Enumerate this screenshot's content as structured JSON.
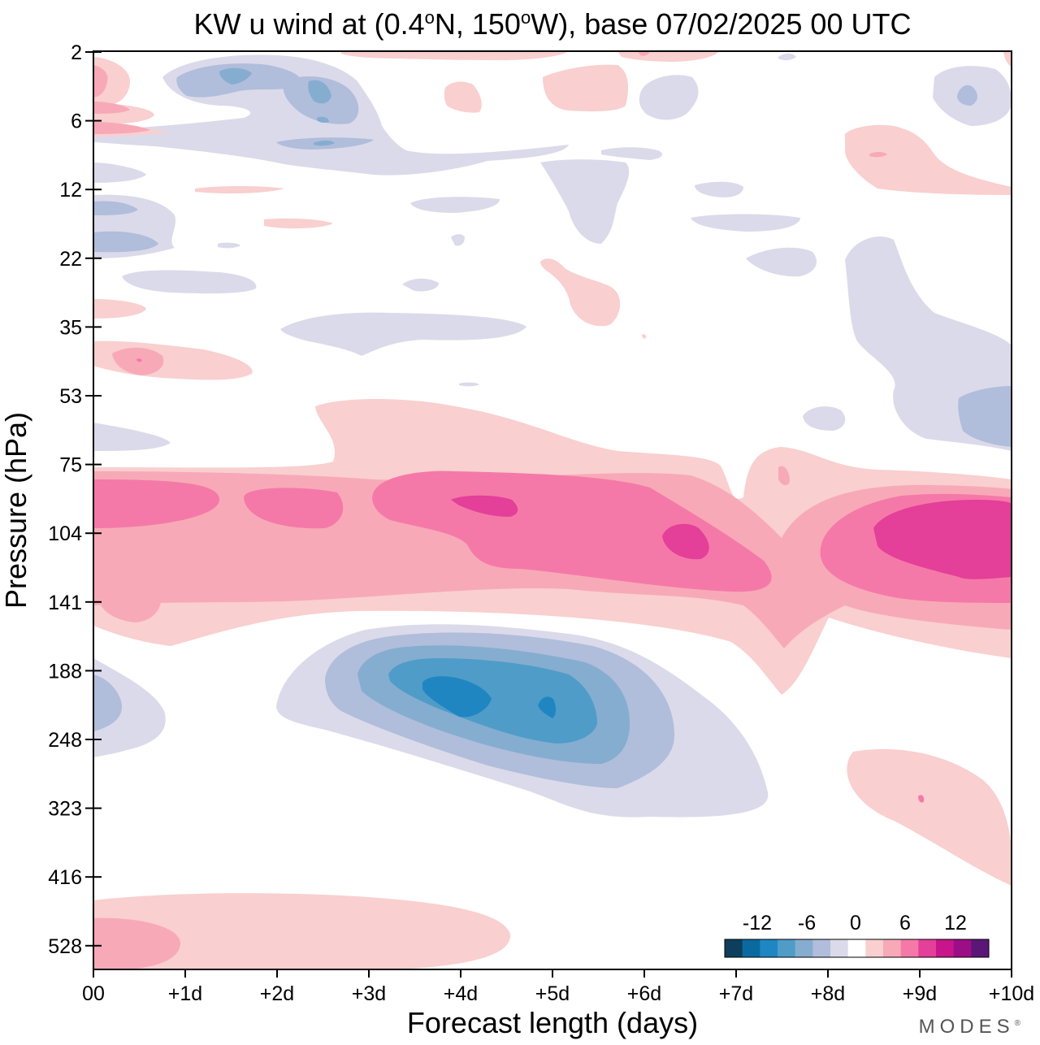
{
  "header": {
    "title_prefix": "KW u wind at (0.4",
    "deg1": "o",
    "title_mid": "N, 150",
    "deg2": "o",
    "title_suffix": "W),  base 07/02/2025  00 UTC"
  },
  "brand": {
    "name": "MODES",
    "mark": "®"
  },
  "chart_data": {
    "type": "heatmap",
    "title": "KW u wind at (0.4°N, 150°W),  base 07/02/2025  00 UTC",
    "xlabel": "Forecast length (days)",
    "ylabel": "Pressure (hPa)",
    "x_ticks": [
      "00",
      "+1d",
      "+2d",
      "+3d",
      "+4d",
      "+5d",
      "+6d",
      "+7d",
      "+8d",
      "+9d",
      "+10d"
    ],
    "x_range_days": [
      0,
      10
    ],
    "y_ticks_hPa": [
      "2",
      "6",
      "12",
      "22",
      "35",
      "53",
      "75",
      "104",
      "141",
      "188",
      "248",
      "323",
      "416",
      "528"
    ],
    "y_range_hPa": [
      2,
      600
    ],
    "colorbar": {
      "tick_labels": [
        "-12",
        "-6",
        "0",
        "6",
        "12"
      ],
      "levels": [
        -16,
        -14,
        -12,
        -10,
        -8,
        -6,
        -4,
        -2,
        2,
        4,
        6,
        8,
        10,
        12,
        14,
        16
      ],
      "colors": [
        "#0d3f5c",
        "#0a6aa0",
        "#1f86c2",
        "#4f9cc9",
        "#85adcf",
        "#b0bddb",
        "#dbdaea",
        "#ffffff",
        "#f9cfcf",
        "#f8a9b7",
        "#f479a8",
        "#e43f99",
        "#c9158b",
        "#9c0e85",
        "#5a1778"
      ]
    },
    "features": [
      {
        "name": "negative core",
        "x_days": 4.0,
        "p_hPa": 200,
        "value": -13
      },
      {
        "name": "negative secondary",
        "x_days": 5.0,
        "p_hPa": 205,
        "value": -12
      },
      {
        "name": "positive band",
        "x_days": 3.9,
        "p_hPa": 88,
        "value": 10
      },
      {
        "name": "positive band core",
        "x_days": 6.5,
        "p_hPa": 104,
        "value": 10
      },
      {
        "name": "positive right core",
        "x_days": 9.5,
        "p_hPa": 104,
        "value": 11
      },
      {
        "name": "upper negative",
        "x_days": 1.5,
        "p_hPa": 3,
        "value": -8
      },
      {
        "name": "lower positive",
        "x_days": 0.5,
        "p_hPa": 520,
        "value": 4
      }
    ]
  }
}
